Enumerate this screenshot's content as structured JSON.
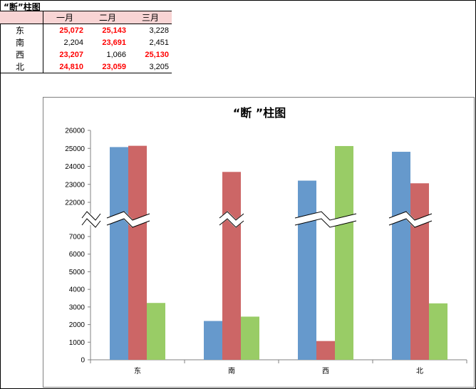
{
  "sheet_title": "“断”柱图",
  "table": {
    "headers": [
      "",
      "一月",
      "二月",
      "三月"
    ],
    "rows": [
      {
        "name": "东",
        "values": [
          "25,072",
          "25,143",
          "3,228"
        ],
        "highlight": [
          true,
          true,
          false
        ]
      },
      {
        "name": "南",
        "values": [
          "2,204",
          "23,691",
          "2,451"
        ],
        "highlight": [
          false,
          true,
          false
        ]
      },
      {
        "name": "西",
        "values": [
          "23,207",
          "1,066",
          "25,130"
        ],
        "highlight": [
          true,
          false,
          true
        ]
      },
      {
        "name": "北",
        "values": [
          "24,810",
          "23,059",
          "3,205"
        ],
        "highlight": [
          true,
          true,
          false
        ]
      }
    ]
  },
  "colors": {
    "highlight_text": "#ff0000",
    "header_fill": "#f8d4d4",
    "series": [
      "#6699cc",
      "#cc6666",
      "#99cc66"
    ]
  },
  "chart_data": {
    "type": "bar",
    "title": "“断 ”柱图",
    "categories": [
      "东",
      "南",
      "西",
      "北"
    ],
    "series": [
      {
        "values": [
          25072,
          2204,
          23207,
          24810
        ]
      },
      {
        "values": [
          25143,
          23691,
          1066,
          23059
        ]
      },
      {
        "values": [
          3228,
          2451,
          25130,
          3205
        ]
      }
    ],
    "axis_break": {
      "lower_max": 7000,
      "upper_min": 22000
    },
    "lower_ticks": [
      "0",
      "1000",
      "2000",
      "3000",
      "4000",
      "5000",
      "6000",
      "7000"
    ],
    "upper_ticks": [
      "22000",
      "23000",
      "24000",
      "25000",
      "26000"
    ],
    "ylim": [
      0,
      26000
    ],
    "legend": "none",
    "grid": false
  }
}
